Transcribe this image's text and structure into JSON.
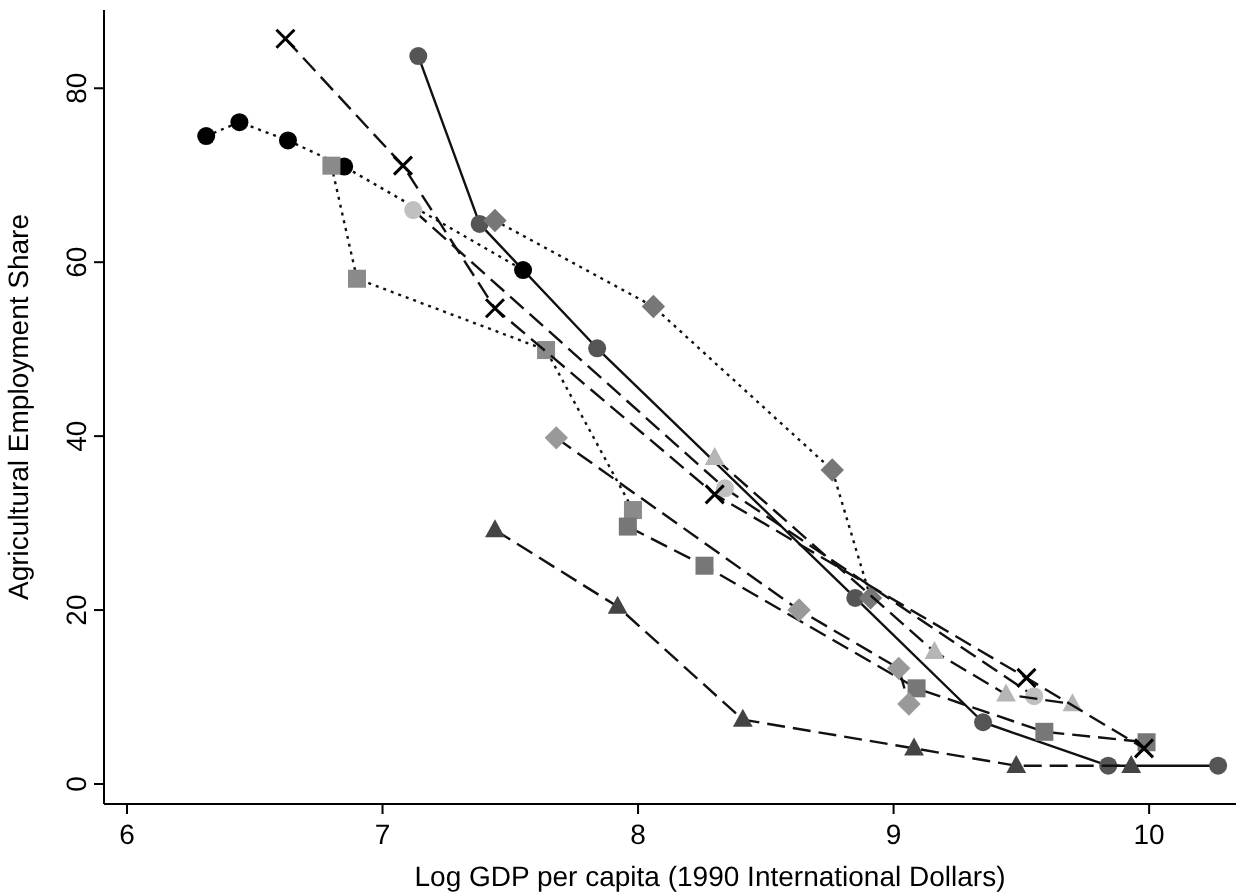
{
  "chart_data": {
    "type": "line",
    "xlabel": "Log GDP per capita (1990 International Dollars)",
    "ylabel": "Agricultural Employment Share",
    "xlim": [
      5.91,
      10.34
    ],
    "ylim": [
      -2.3,
      89
    ],
    "xticks": [
      6,
      7,
      8,
      9,
      10
    ],
    "yticks": [
      0,
      20,
      40,
      60,
      80
    ],
    "series": [
      {
        "color": "#555555",
        "marker": "circle",
        "line_style": "solid",
        "x": [
          7.14,
          7.38,
          7.84,
          8.85,
          9.35,
          9.84,
          10.27
        ],
        "values": [
          83.7,
          64.4,
          50.1,
          21.4,
          7.1,
          2.1,
          2.1
        ]
      },
      {
        "color": "#000000",
        "marker": "circle",
        "line_style": "dotted",
        "x": [
          6.31,
          6.44,
          6.63,
          6.85,
          7.55
        ],
        "values": [
          74.5,
          76.1,
          74,
          71,
          59.1
        ]
      },
      {
        "color": "#000000",
        "marker": "cross",
        "line_style": "dashed",
        "x": [
          6.62,
          7.08,
          7.44,
          8.3,
          9.52,
          9.98
        ],
        "values": [
          85.7,
          71.1,
          54.7,
          33.3,
          12.2,
          4.1
        ]
      },
      {
        "color": "#c0c0c0",
        "marker": "circle",
        "line_style": "dashed",
        "x": [
          7.12,
          8.34,
          9.55
        ],
        "values": [
          66,
          34,
          10.1
        ]
      },
      {
        "color": "#777777",
        "marker": "diamond",
        "line_style": "dotted",
        "x": [
          7.44,
          8.06,
          8.76,
          8.91
        ],
        "values": [
          64.8,
          54.9,
          36.1,
          21.4
        ]
      },
      {
        "color": "#8a8a8a",
        "marker": "square",
        "line_style": "dotted",
        "x": [
          6.8,
          6.9,
          7.64,
          7.98
        ],
        "values": [
          71.1,
          58.1,
          49.9,
          31.5
        ]
      },
      {
        "color": "#777777",
        "marker": "square",
        "line_style": "dashed",
        "x": [
          7.96,
          8.26,
          9.09,
          9.59,
          9.99
        ],
        "values": [
          29.6,
          25.1,
          11,
          6,
          4.8
        ]
      },
      {
        "color": "#999999",
        "marker": "diamond",
        "line_style": "dashed",
        "x": [
          7.68,
          8.63,
          9.02,
          9.06
        ],
        "values": [
          39.8,
          20,
          13.3,
          9.2
        ]
      },
      {
        "color": "#444444",
        "marker": "triangle",
        "line_style": "dashed",
        "x": [
          7.44,
          7.92,
          8.41,
          9.08,
          9.48,
          9.93
        ],
        "values": [
          29.2,
          20.4,
          7.4,
          4.1,
          2.1,
          2.1
        ]
      },
      {
        "color": "#b5b5b5",
        "marker": "triangle",
        "line_style": "dashed",
        "x": [
          8.3,
          9.16,
          9.44,
          9.7
        ],
        "values": [
          37.5,
          15.2,
          10.3,
          9.2
        ]
      }
    ]
  }
}
